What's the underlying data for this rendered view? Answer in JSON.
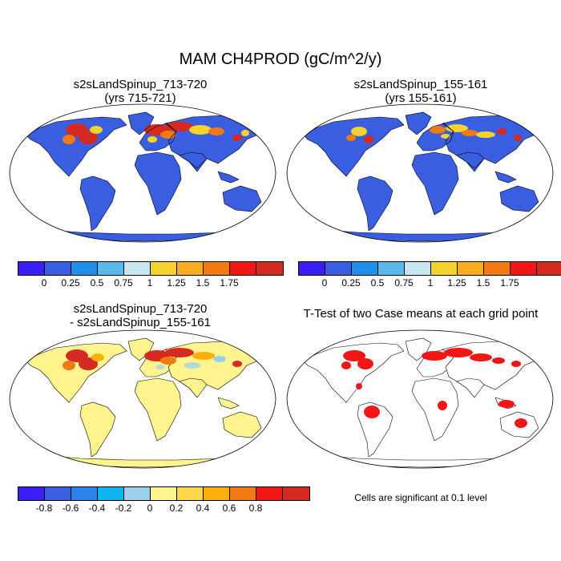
{
  "main_title": "MAM CH4PROD (gC/m^2/y)",
  "panels": [
    {
      "title_line1": "s2sLandSpinup_713-720",
      "title_line2": "(yrs 715-721)"
    },
    {
      "title_line1": "s2sLandSpinup_155-161",
      "title_line2": "(yrs 155-161)"
    },
    {
      "title_line1": "s2sLandSpinup_713-720",
      "title_line2": "- s2sLandSpinup_155-161"
    },
    {
      "title_line1": "T-Test of two Case means at each grid point",
      "title_line2": ""
    }
  ],
  "colorbar_abs": {
    "colors": [
      "#3B1EF5",
      "#3A5EE0",
      "#1F8FEA",
      "#5AB8EA",
      "#C8E6F2",
      "#F6D22C",
      "#F8AC1E",
      "#F27A12",
      "#F21616",
      "#D42A22"
    ],
    "ticks": [
      "0",
      "0.25",
      "0.5",
      "0.75",
      "1",
      "1.25",
      "1.5",
      "1.75"
    ]
  },
  "colorbar_diff": {
    "colors": [
      "#3B1EF5",
      "#3A5EE0",
      "#2C82EA",
      "#0FB4F0",
      "#9CD0EA",
      "#FFF48E",
      "#FDD848",
      "#FCB00E",
      "#F27A12",
      "#F21616",
      "#D42A22"
    ],
    "ticks": [
      "-0.8",
      "-0.6",
      "-0.4",
      "-0.2",
      "0",
      "0.2",
      "0.4",
      "0.6",
      "0.8"
    ]
  },
  "significance_note": "Cells are significant at 0.1 level",
  "map_colors": {
    "ocean": "#ffffff",
    "land_base_abs": "#3A5EE0",
    "land_base_diff": "#FFF48E",
    "hotspot_red": "#D42A22",
    "hotspot_orange": "#F27A12",
    "hotspot_yellow": "#F6D22C",
    "sig_red": "#F21616",
    "coast": "#000000"
  }
}
